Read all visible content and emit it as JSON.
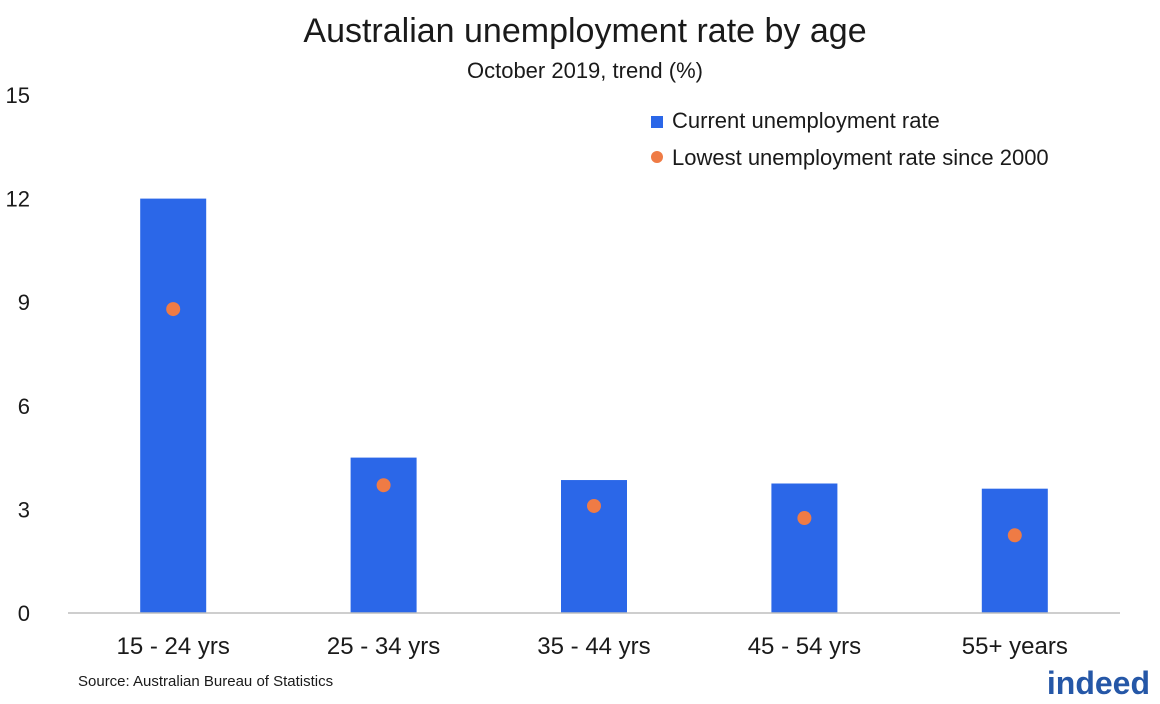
{
  "chart_data": {
    "type": "bar",
    "title": "Australian unemployment rate by age",
    "subtitle": "October 2019, trend (%)",
    "categories": [
      "15 - 24 yrs",
      "25 - 34 yrs",
      "35 - 44 yrs",
      "45 - 54 yrs",
      "55+ years"
    ],
    "series": [
      {
        "name": "Current unemployment rate",
        "kind": "bar",
        "color": "#2b67e8",
        "values": [
          12.0,
          4.5,
          3.85,
          3.75,
          3.6
        ]
      },
      {
        "name": "Lowest unemployment rate since 2000",
        "kind": "point",
        "color": "#ef7b45",
        "values": [
          8.8,
          3.7,
          3.1,
          2.75,
          2.25
        ]
      }
    ],
    "ylim": [
      0,
      15
    ],
    "yticks": [
      0,
      3,
      6,
      9,
      12,
      15
    ],
    "grid": false,
    "legend_position": "top-right",
    "source": "Source: Australian Bureau of Statistics",
    "logo": "indeed"
  }
}
